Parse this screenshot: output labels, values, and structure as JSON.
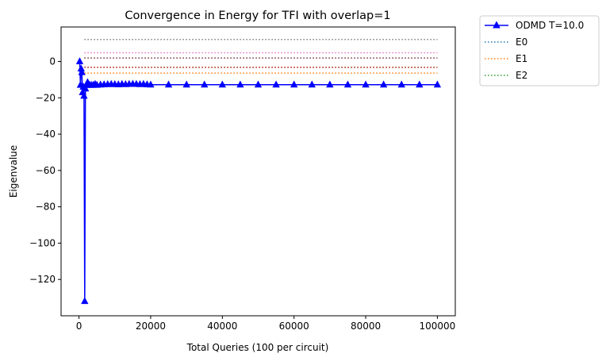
{
  "chart_data": {
    "type": "line",
    "title": "Convergence in Energy for TFI with overlap=1",
    "xlabel": "Total Queries (100 per circuit)",
    "ylabel": "Eigenvalue",
    "xlim": [
      -5000,
      105000
    ],
    "ylim": [
      -140,
      19
    ],
    "xticks": [
      0,
      20000,
      40000,
      60000,
      80000,
      100000
    ],
    "xtick_labels": [
      "0",
      "20000",
      "40000",
      "60000",
      "80000",
      "100000"
    ],
    "yticks": [
      0,
      -20,
      -40,
      -60,
      -80,
      -100,
      -120
    ],
    "ytick_labels": [
      "0",
      "−20",
      "−40",
      "−60",
      "−80",
      "−100",
      "−120"
    ],
    "grid": false,
    "legend_position": "outside-upper-right",
    "legend": [
      {
        "label": "ODMD T=10.0",
        "style": "solid-triangle",
        "color": "#0000ff"
      },
      {
        "label": "E0",
        "style": "dotted",
        "color": "#1f77b4"
      },
      {
        "label": "E1",
        "style": "dotted",
        "color": "#ff7f0e"
      },
      {
        "label": "E2",
        "style": "dotted",
        "color": "#2ca02c"
      }
    ],
    "series": [
      {
        "name": "ODMD T=10.0",
        "color": "#0000ff",
        "marker": "triangle",
        "x": [
          200,
          400,
          600,
          800,
          1000,
          1200,
          1400,
          1600,
          1800,
          2000,
          2200,
          2400,
          2600,
          2800,
          3000,
          3500,
          4000,
          4500,
          5000,
          6000,
          7000,
          8000,
          9000,
          10000,
          11000,
          12000,
          13000,
          14000,
          15000,
          16000,
          17000,
          18000,
          19000,
          20000,
          25000,
          30000,
          35000,
          40000,
          45000,
          50000,
          55000,
          60000,
          65000,
          70000,
          75000,
          80000,
          85000,
          90000,
          95000,
          100000
        ],
        "y": [
          0,
          -13,
          -4,
          -6,
          -17,
          -14,
          -19,
          -132,
          -15,
          -13,
          -13,
          -11.5,
          -12.5,
          -13,
          -13,
          -13,
          -13,
          -12.5,
          -13,
          -12.8,
          -12.7,
          -12.6,
          -12.5,
          -12.6,
          -12.7,
          -12.5,
          -12.6,
          -12.5,
          -12.4,
          -12.5,
          -12.6,
          -12.5,
          -12.7,
          -12.8,
          -12.8,
          -12.8,
          -12.8,
          -12.8,
          -12.8,
          -12.8,
          -12.8,
          -12.8,
          -12.8,
          -12.8,
          -12.8,
          -12.8,
          -12.8,
          -12.8,
          -12.8,
          -12.8
        ]
      }
    ],
    "reference_lines": [
      {
        "color": "#1f77b4",
        "y": -12.8
      },
      {
        "color": "#ff7f0e",
        "y": -6.4
      },
      {
        "color": "#2ca02c",
        "y": -3.2
      },
      {
        "color": "#d62728",
        "y": -3.2
      },
      {
        "color": "#9467bd",
        "y": 1.9
      },
      {
        "color": "#8c564b",
        "y": 1.9
      },
      {
        "color": "#e377c2",
        "y": 4.8
      },
      {
        "color": "#7f7f7f",
        "y": 12.1
      }
    ]
  }
}
